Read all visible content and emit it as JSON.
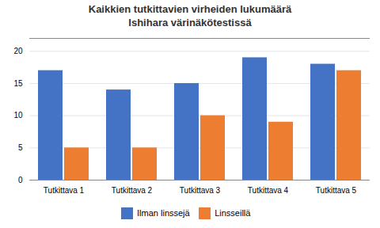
{
  "chart_data": {
    "type": "bar",
    "title": "Kaikkien tutkittavien virheiden lukumäärä\nIshihara värinäkötestissä",
    "categories": [
      "Tutkittava 1",
      "Tutkittava 2",
      "Tutkittava 3",
      "Tutkittava 4",
      "Tutkittava 5"
    ],
    "series": [
      {
        "name": "Ilman linssejä",
        "color": "#4472C4",
        "values": [
          17,
          14,
          15,
          19,
          18
        ]
      },
      {
        "name": "Linsseillä",
        "color": "#ED7D31",
        "values": [
          5,
          5,
          10,
          9,
          17
        ]
      }
    ],
    "ylim": [
      0,
      22
    ],
    "yticks": [
      0,
      5,
      10,
      15,
      20
    ],
    "grid": true,
    "legend": "bottom"
  }
}
